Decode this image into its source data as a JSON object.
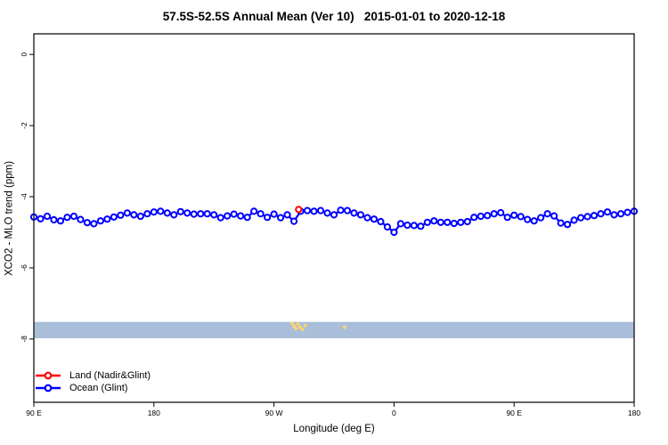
{
  "chart_data": {
    "type": "scatter",
    "title": "57.5S-52.5S Annual Mean (Ver 10)   2015-01-01 to 2020-12-18",
    "xlabel": "Longitude (deg E)",
    "ylabel": "XCO2 - MLO trend (ppm)",
    "x_axis": {
      "span_deg": 450,
      "ticks": [
        {
          "pos": 0,
          "label": "90 E"
        },
        {
          "pos": 90,
          "label": "180"
        },
        {
          "pos": 180,
          "label": "90 W"
        },
        {
          "pos": 270,
          "label": "0"
        },
        {
          "pos": 360,
          "label": "90 E"
        },
        {
          "pos": 450,
          "label": "180"
        }
      ]
    },
    "y_axis": {
      "ticks": [
        0,
        -2,
        -4,
        -6,
        -8
      ],
      "top": 0.58,
      "bottom": -9.78,
      "label_rotation_deg": -90
    },
    "series": [
      {
        "name": "Land (Nadir&Glint)",
        "color": "#ff0000",
        "marker": "open-circle",
        "points": [
          {
            "x": 198.5,
            "y": -4.36
          }
        ]
      },
      {
        "name": "Ocean (Glint)",
        "color": "#0000ff",
        "marker": "open-circle",
        "x_start": 0,
        "x_step": 5,
        "values": [
          -4.57,
          -4.62,
          -4.55,
          -4.65,
          -4.68,
          -4.58,
          -4.55,
          -4.64,
          -4.73,
          -4.76,
          -4.68,
          -4.63,
          -4.57,
          -4.52,
          -4.46,
          -4.51,
          -4.55,
          -4.48,
          -4.43,
          -4.41,
          -4.46,
          -4.51,
          -4.42,
          -4.46,
          -4.49,
          -4.48,
          -4.48,
          -4.51,
          -4.59,
          -4.54,
          -4.49,
          -4.54,
          -4.58,
          -4.41,
          -4.48,
          -4.58,
          -4.49,
          -4.59,
          -4.51,
          -4.69,
          -4.41,
          -4.39,
          -4.41,
          -4.39,
          -4.46,
          -4.51,
          -4.38,
          -4.39,
          -4.46,
          -4.51,
          -4.59,
          -4.63,
          -4.7,
          -4.85,
          -5.0,
          -4.76,
          -4.8,
          -4.81,
          -4.83,
          -4.72,
          -4.68,
          -4.72,
          -4.72,
          -4.75,
          -4.72,
          -4.7,
          -4.58,
          -4.55,
          -4.53,
          -4.48,
          -4.45,
          -4.58,
          -4.52,
          -4.56,
          -4.64,
          -4.68,
          -4.59,
          -4.48,
          -4.54,
          -4.74,
          -4.78,
          -4.66,
          -4.59,
          -4.56,
          -4.53,
          -4.48,
          -4.43,
          -4.51,
          -4.48,
          -4.44,
          -4.41
        ]
      }
    ],
    "band": {
      "y_top": -7.52,
      "y_bottom": -7.98,
      "color": "#a9bed9"
    },
    "flagged_points": {
      "color": "#fcd472",
      "points": [
        [
          193.5,
          -7.56
        ],
        [
          195,
          -7.64
        ],
        [
          196.5,
          -7.71
        ],
        [
          198,
          -7.58
        ],
        [
          199.5,
          -7.67
        ],
        [
          201.5,
          -7.73
        ],
        [
          203.5,
          -7.62
        ],
        [
          233,
          -7.67
        ]
      ]
    },
    "legend_position": "bottom-left"
  }
}
